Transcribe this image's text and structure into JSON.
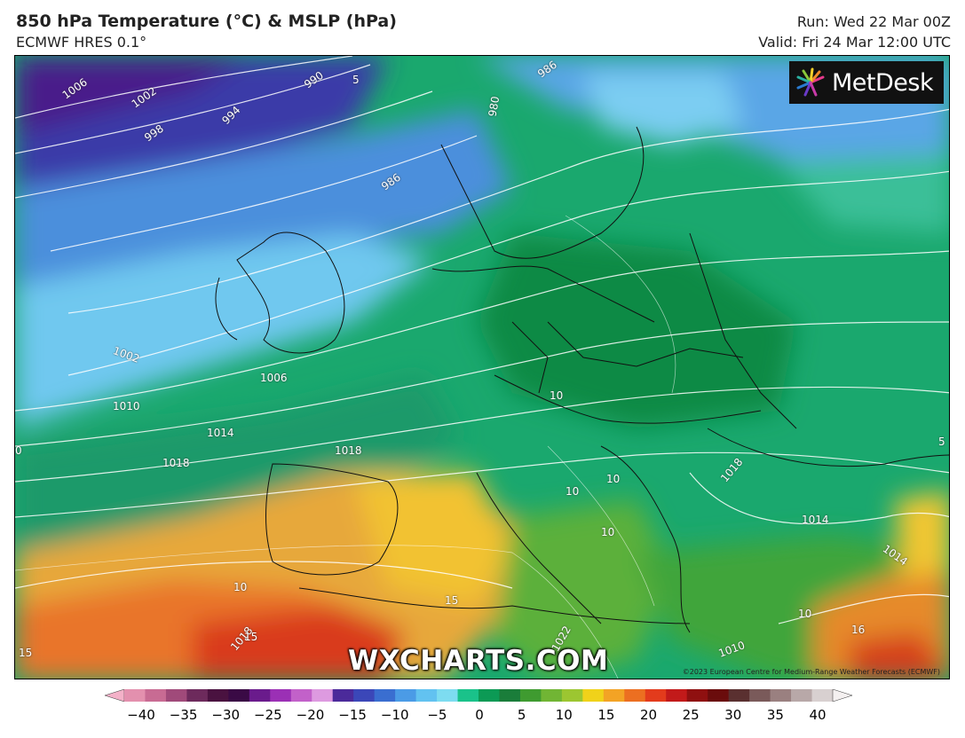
{
  "header": {
    "title": "850 hPa Temperature (°C) & MSLP (hPa)",
    "subtitle": "ECMWF HRES 0.1°",
    "run": "Run: Wed 22 Mar 00Z",
    "valid": "Valid: Fri 24 Mar 12:00 UTC"
  },
  "logo": {
    "text": "MetDesk"
  },
  "watermark": "WXCHARTS.COM",
  "copyright": "©2023 European Centre for Medium-Range Weather Forecasts (ECMWF)",
  "map_labels": {
    "isobars": [
      "1006",
      "1002",
      "998",
      "994",
      "990",
      "986",
      "986",
      "980",
      "1002",
      "1006",
      "1010",
      "1014",
      "1018",
      "1018",
      "1018",
      "1014",
      "1014",
      "1010",
      "1022",
      "1018"
    ],
    "temps": [
      "10",
      "10",
      "10",
      "10",
      "10",
      "15",
      "15",
      "10",
      "16",
      "15",
      "5",
      "5",
      "0"
    ]
  },
  "colorbar": {
    "ticks": [
      "−40",
      "−35",
      "−30",
      "−25",
      "−20",
      "−15",
      "−10",
      "−5",
      "0",
      "5",
      "10",
      "15",
      "20",
      "25",
      "30",
      "35",
      "40"
    ],
    "colors": [
      "#f3b1c8",
      "#e390ae",
      "#c86b93",
      "#a04a7a",
      "#6d2a5c",
      "#4a1240",
      "#3a0a45",
      "#6a1b8c",
      "#9b30b5",
      "#c261c9",
      "#dd9ae0",
      "#4b2a9a",
      "#3b47b8",
      "#3a6ed0",
      "#4b9be6",
      "#62c2f0",
      "#7ddcf0",
      "#1ac28a",
      "#0c9a55",
      "#1a7d3a",
      "#3f9b30",
      "#71b534",
      "#9cc631",
      "#f0d21a",
      "#f3a325",
      "#ec6f21",
      "#e33b1c",
      "#c21a1a",
      "#8f1010",
      "#6a0c0c",
      "#5a3030",
      "#7a5a5a",
      "#9a8080",
      "#b8a8a8",
      "#d8d0d0",
      "#f4f0f0"
    ]
  }
}
